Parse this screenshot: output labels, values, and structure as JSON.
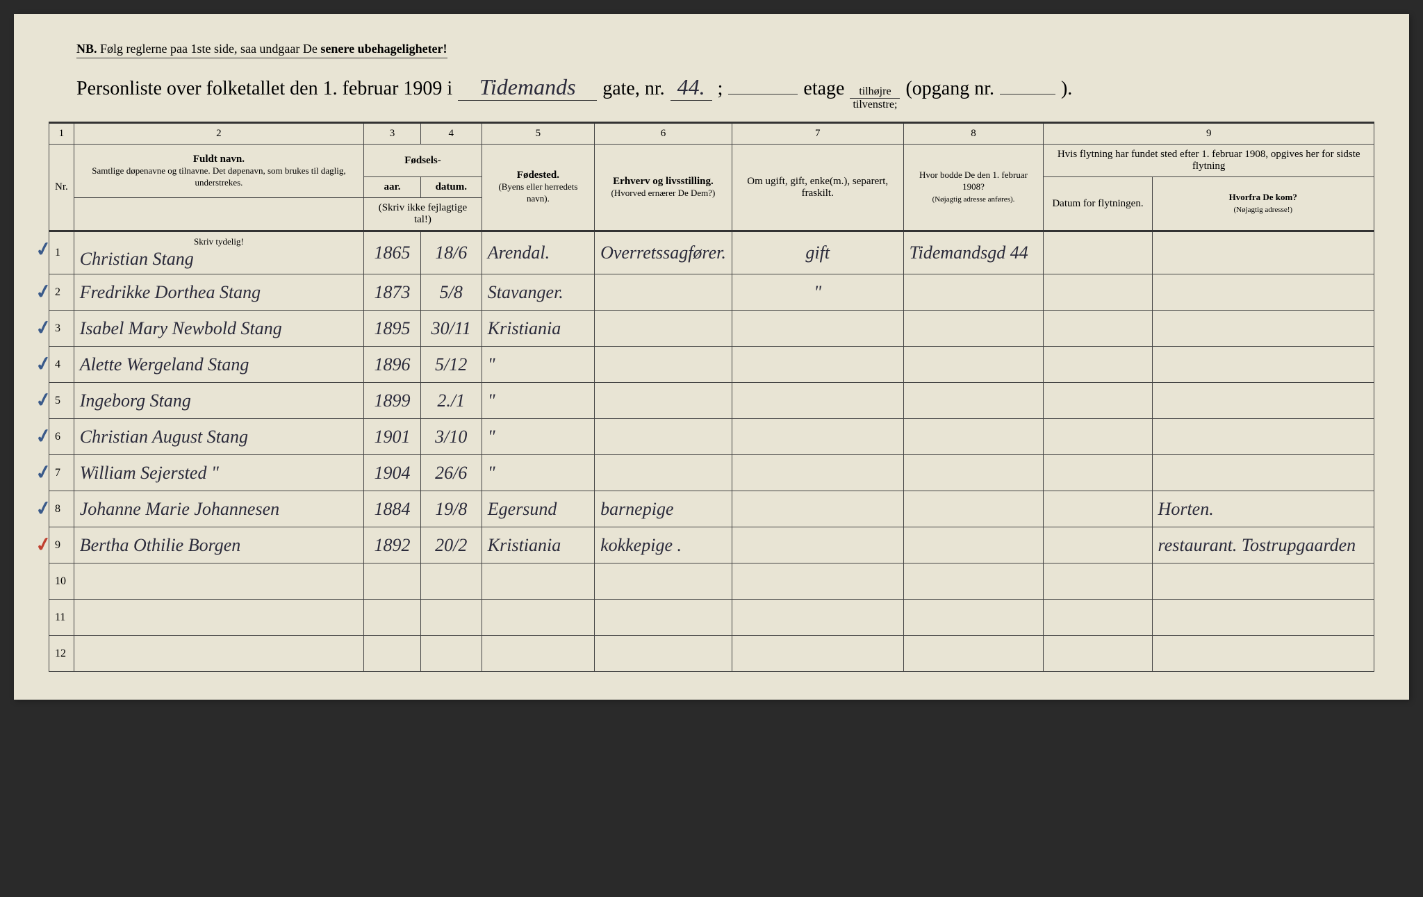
{
  "nb": {
    "prefix": "NB.",
    "text": "Følg reglerne paa 1ste side, saa undgaar De",
    "emphasis": "senere ubehageligheter!"
  },
  "title": {
    "prefix": "Personliste over folketallet den 1. februar 1909 i",
    "street": "Tidemands",
    "gate_label": "gate, nr.",
    "gate_nr": "44.",
    "semicolon": ";",
    "etage_label": "etage",
    "fraction_top": "tilhøjre",
    "fraction_bot": "tilvenstre;",
    "opgang_label": "(opgang nr.",
    "opgang_nr": "",
    "closing": ")."
  },
  "headers": {
    "col1": "1",
    "col2": "2",
    "col3": "3",
    "col4": "4",
    "col5": "5",
    "col6": "6",
    "col7": "7",
    "col8": "8",
    "col9": "9",
    "nr": "Nr.",
    "fuldt_navn": "Fuldt navn.",
    "fuldt_navn_sub": "Samtlige døpenavne og tilnavne. Det døpenavn, som brukes til daglig, understrekes.",
    "fodsels": "Fødsels-",
    "aar": "aar.",
    "datum": "datum.",
    "skriv_ikke": "(Skriv ikke fejlagtige tal!)",
    "fodested": "Fødested.",
    "fodested_sub": "(Byens eller herredets navn).",
    "erhverv": "Erhverv og livsstilling.",
    "erhverv_sub": "(Hvorved ernærer De Dem?)",
    "om_ugift": "Om ugift, gift, enke(m.), separert, fraskilt.",
    "hvor_bodde": "Hvor bodde De den 1. februar 1908?",
    "hvor_bodde_sub": "(Nøjagtig adresse anføres).",
    "flytning": "Hvis flytning har fundet sted efter 1. februar 1908, opgives her for sidste flytning",
    "datum_flyt": "Datum for flytningen.",
    "hvorfra": "Hvorfra De kom?",
    "hvorfra_sub": "(Nøjagtig adresse!)",
    "skriv_tydelig": "Skriv tydelig!"
  },
  "rows": [
    {
      "nr": "1",
      "check": "blue",
      "name": "Christian Stang",
      "aar": "1865",
      "datum": "18/6",
      "sted": "Arendal.",
      "erhverv": "Overretssagfører.",
      "status": "gift",
      "bodde": "Tidemandsgd 44",
      "flyt_dat": "",
      "hvorfra": ""
    },
    {
      "nr": "2",
      "check": "blue",
      "name": "Fredrikke Dorthea Stang",
      "aar": "1873",
      "datum": "5/8",
      "sted": "Stavanger.",
      "erhverv": "",
      "status": "\"",
      "bodde": "",
      "flyt_dat": "",
      "hvorfra": ""
    },
    {
      "nr": "3",
      "check": "blue",
      "name": "Isabel Mary Newbold Stang",
      "aar": "1895",
      "datum": "30/11",
      "sted": "Kristiania",
      "erhverv": "",
      "status": "",
      "bodde": "",
      "flyt_dat": "",
      "hvorfra": ""
    },
    {
      "nr": "4",
      "check": "blue",
      "name": "Alette Wergeland Stang",
      "aar": "1896",
      "datum": "5/12",
      "sted": "\"",
      "erhverv": "",
      "status": "",
      "bodde": "",
      "flyt_dat": "",
      "hvorfra": ""
    },
    {
      "nr": "5",
      "check": "blue",
      "name": "Ingeborg Stang",
      "aar": "1899",
      "datum": "2./1",
      "sted": "\"",
      "erhverv": "",
      "status": "",
      "bodde": "",
      "flyt_dat": "",
      "hvorfra": ""
    },
    {
      "nr": "6",
      "check": "blue",
      "name": "Christian August Stang",
      "aar": "1901",
      "datum": "3/10",
      "sted": "\"",
      "erhverv": "",
      "status": "",
      "bodde": "",
      "flyt_dat": "",
      "hvorfra": ""
    },
    {
      "nr": "7",
      "check": "blue",
      "name": "William Sejersted \"",
      "aar": "1904",
      "datum": "26/6",
      "sted": "\"",
      "erhverv": "",
      "status": "",
      "bodde": "",
      "flyt_dat": "",
      "hvorfra": ""
    },
    {
      "nr": "8",
      "check": "blue",
      "name": "Johanne Marie Johannesen",
      "aar": "1884",
      "datum": "19/8",
      "sted": "Egersund",
      "erhverv": "barnepige",
      "status": "",
      "bodde": "",
      "flyt_dat": "",
      "hvorfra": "Horten."
    },
    {
      "nr": "9",
      "check": "red",
      "name": "Bertha Othilie Borgen",
      "aar": "1892",
      "datum": "20/2",
      "sted": "Kristiania",
      "erhverv": "kokkepige .",
      "status": "",
      "bodde": "",
      "flyt_dat": "",
      "hvorfra": "restaurant. Tostrupgaarden"
    },
    {
      "nr": "10",
      "check": "",
      "name": "",
      "aar": "",
      "datum": "",
      "sted": "",
      "erhverv": "",
      "status": "",
      "bodde": "",
      "flyt_dat": "",
      "hvorfra": ""
    },
    {
      "nr": "11",
      "check": "",
      "name": "",
      "aar": "",
      "datum": "",
      "sted": "",
      "erhverv": "",
      "status": "",
      "bodde": "",
      "flyt_dat": "",
      "hvorfra": ""
    },
    {
      "nr": "12",
      "check": "",
      "name": "",
      "aar": "",
      "datum": "",
      "sted": "",
      "erhverv": "",
      "status": "",
      "bodde": "",
      "flyt_dat": "",
      "hvorfra": ""
    }
  ],
  "colors": {
    "paper": "#e8e4d4",
    "ink": "#2a2a3a",
    "check_blue": "#3a5a8a",
    "check_red": "#c04030",
    "border": "#444"
  }
}
